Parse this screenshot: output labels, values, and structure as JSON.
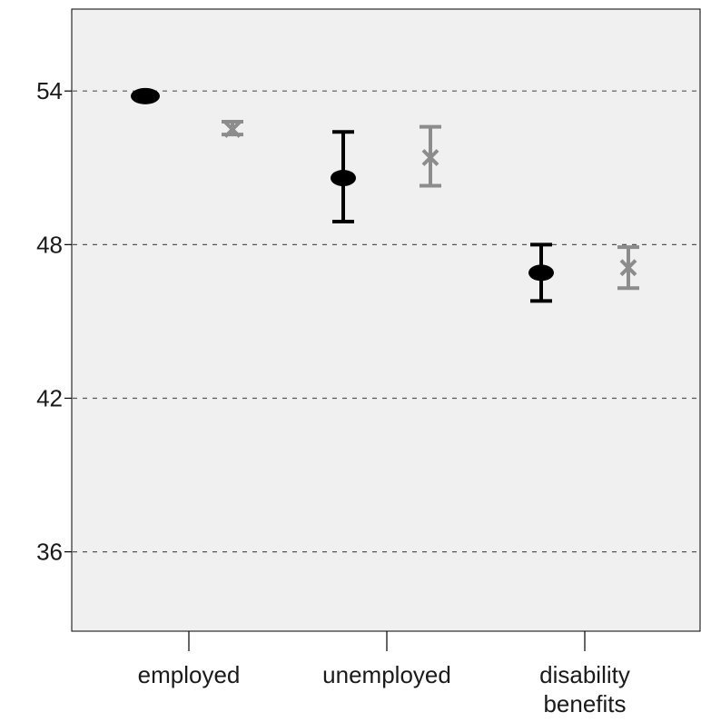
{
  "chart_data": {
    "type": "scatter",
    "title": "",
    "xlabel": "",
    "ylabel": "",
    "categories": [
      "employed",
      "unemployed",
      "disability benefits"
    ],
    "category_lines": [
      [
        "employed"
      ],
      [
        "unemployed"
      ],
      [
        "disability",
        "benefits"
      ]
    ],
    "y_ticks": [
      36,
      42,
      48,
      54
    ],
    "y_tick_labels": [
      "36",
      "42",
      "48",
      "54"
    ],
    "ylim": [
      32.9,
      57.2
    ],
    "grid": "horizontal dashed",
    "legend": "none",
    "series": [
      {
        "marker": "circle",
        "color": "#000000",
        "values": [
          53.8,
          50.6,
          46.9
        ],
        "ci_low": [
          53.8,
          48.9,
          45.8
        ],
        "ci_high": [
          53.8,
          52.4,
          48.0
        ]
      },
      {
        "marker": "x",
        "color": "#8c8c8c",
        "values": [
          52.5,
          51.4,
          47.1
        ],
        "ci_low": [
          52.3,
          50.3,
          46.3
        ],
        "ci_high": [
          52.8,
          52.6,
          47.9
        ]
      }
    ]
  }
}
